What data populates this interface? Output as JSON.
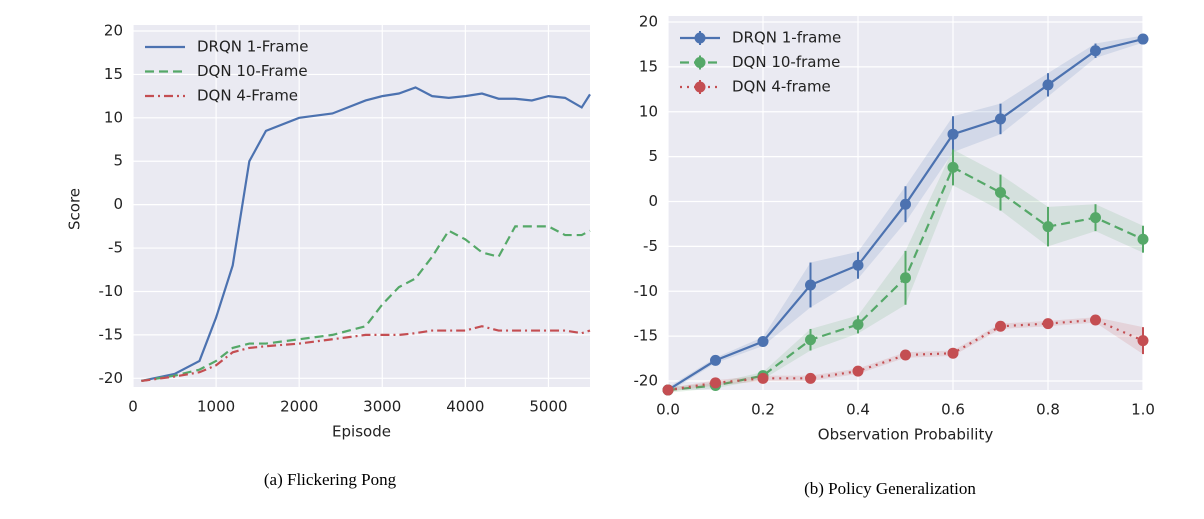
{
  "chart_data": [
    {
      "type": "line",
      "caption": "(a) Flickering Pong",
      "xlabel": "Episode",
      "ylabel": "Score",
      "x": [
        100,
        500,
        800,
        1000,
        1200,
        1400,
        1600,
        2000,
        2400,
        2800,
        3000,
        3200,
        3400,
        3600,
        3800,
        4000,
        4200,
        4400,
        4600,
        4800,
        5000,
        5200,
        5400,
        5500
      ],
      "series": [
        {
          "name": "DRQN 1-Frame",
          "color": "#4c72b0",
          "style": "solid",
          "values": [
            -20.3,
            -19.5,
            -18,
            -13,
            -7,
            5,
            8.5,
            10,
            10.5,
            12,
            12.5,
            12.8,
            13.5,
            12.5,
            12.3,
            12.5,
            12.8,
            12.2,
            12.2,
            12,
            12.5,
            12.3,
            11.2,
            12.7
          ]
        },
        {
          "name": "DQN 10-Frame",
          "color": "#55a868",
          "style": "dashed",
          "values": [
            -20.3,
            -19.7,
            -19,
            -18,
            -16.5,
            -16,
            -16,
            -15.5,
            -15,
            -14,
            -11.5,
            -9.5,
            -8.5,
            -6,
            -3,
            -4,
            -5.5,
            -6,
            -2.5,
            -2.5,
            -2.5,
            -3.5,
            -3.5,
            -3
          ]
        },
        {
          "name": "DQN 4-Frame",
          "color": "#c44e52",
          "style": "dashdot",
          "values": [
            -20.3,
            -19.8,
            -19.3,
            -18.5,
            -17,
            -16.5,
            -16.3,
            -16,
            -15.5,
            -15,
            -15,
            -15,
            -14.8,
            -14.5,
            -14.5,
            -14.5,
            -14,
            -14.5,
            -14.5,
            -14.5,
            -14.5,
            -14.5,
            -14.8,
            -14.5
          ]
        }
      ],
      "xlim": [
        0,
        5500
      ],
      "xticks": [
        0,
        1000,
        2000,
        3000,
        4000,
        5000
      ],
      "ylim": [
        -21,
        20
      ],
      "yticks": [
        -20,
        -15,
        -10,
        -5,
        0,
        5,
        10,
        15,
        20
      ],
      "grid": true,
      "legend": "upper left"
    },
    {
      "type": "line",
      "caption": "(b) Policy Generalization",
      "xlabel": "Observation Probability",
      "x": [
        0,
        0.1,
        0.2,
        0.3,
        0.4,
        0.5,
        0.6,
        0.7,
        0.8,
        0.9,
        1
      ],
      "series": [
        {
          "name": "DRQN 1-frame",
          "color": "#4c72b0",
          "style": "solid",
          "values": [
            -21,
            -17.7,
            -15.6,
            -9.3,
            -7.1,
            -0.3,
            7.5,
            9.2,
            13,
            16.8,
            18.1
          ],
          "errors": [
            0.3,
            0.3,
            0.5,
            2.5,
            1.5,
            2,
            2,
            1.7,
            1.3,
            0.8,
            0.4
          ]
        },
        {
          "name": "DQN 10-frame",
          "color": "#55a868",
          "style": "dashed",
          "values": [
            -21,
            -20.5,
            -19.4,
            -15.4,
            -13.7,
            -8.5,
            3.8,
            1,
            -2.8,
            -1.8,
            -4.2
          ],
          "errors": [
            0.3,
            0.3,
            0.4,
            1.2,
            1,
            3,
            2,
            2,
            2.2,
            1.5,
            1.5
          ]
        },
        {
          "name": "DQN 4-frame",
          "color": "#c44e52",
          "style": "dotted",
          "values": [
            -21,
            -20.2,
            -19.7,
            -19.7,
            -18.9,
            -17.1,
            -16.9,
            -13.9,
            -13.6,
            -13.2,
            -15.5
          ],
          "errors": [
            0.2,
            0.3,
            0.3,
            0.3,
            0.3,
            0.3,
            0.3,
            0.3,
            0.3,
            0.3,
            1.5
          ]
        }
      ],
      "xlim": [
        0,
        1
      ],
      "xticks": [
        {
          "value": 0,
          "label": "0.0"
        },
        {
          "value": 0.2,
          "label": "0.2"
        },
        {
          "value": 0.4,
          "label": "0.4"
        },
        {
          "value": 0.6,
          "label": "0.6"
        },
        {
          "value": 0.8,
          "label": "0.8"
        },
        {
          "value": 1,
          "label": "1.0"
        }
      ],
      "ylim": [
        -21,
        20
      ],
      "yticks": [
        -20,
        -15,
        -10,
        -5,
        0,
        5,
        10,
        15,
        20
      ],
      "grid": true,
      "legend": "upper left"
    }
  ]
}
